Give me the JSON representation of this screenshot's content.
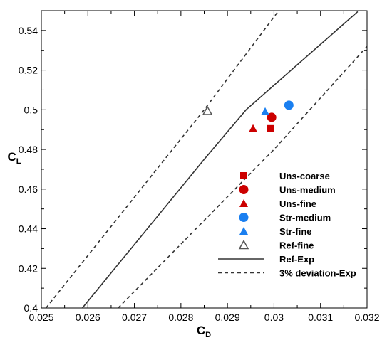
{
  "chart_data": {
    "type": "scatter",
    "xlabel": {
      "main": "C",
      "sub": "D"
    },
    "ylabel": {
      "main": "C",
      "sub": "L"
    },
    "xlim": [
      0.025,
      0.032
    ],
    "ylim": [
      0.4,
      0.55
    ],
    "xticks": [
      0.025,
      0.026,
      0.027,
      0.028,
      0.029,
      0.03,
      0.031,
      0.032
    ],
    "xtick_labels": [
      "0.025",
      "0.026",
      "0.027",
      "0.028",
      "0.029",
      "0.03",
      "0.031",
      "0.032"
    ],
    "yticks": [
      0.4,
      0.42,
      0.44,
      0.46,
      0.48,
      0.5,
      0.52,
      0.54
    ],
    "ytick_labels": [
      "0.4",
      "0.42",
      "0.44",
      "0.46",
      "0.48",
      "0.5",
      "0.52",
      "0.54"
    ],
    "legend_position": "lower-right",
    "points": [
      {
        "name": "Uns-coarse",
        "x": 0.02993,
        "y": 0.4905,
        "marker": "square",
        "color": "#cc0000"
      },
      {
        "name": "Uns-medium",
        "x": 0.02995,
        "y": 0.4962,
        "marker": "circle",
        "color": "#cc0000"
      },
      {
        "name": "Uns-fine",
        "x": 0.02955,
        "y": 0.4905,
        "marker": "triangle",
        "color": "#cc0000"
      },
      {
        "name": "Str-medium",
        "x": 0.03032,
        "y": 0.5023,
        "marker": "circle",
        "color": "#1a7ff0"
      },
      {
        "name": "Str-fine",
        "x": 0.02981,
        "y": 0.4991,
        "marker": "triangle",
        "color": "#1a7ff0"
      },
      {
        "name": "Ref-fine",
        "x": 0.02857,
        "y": 0.4994,
        "marker": "triangle-open",
        "color": "#555555"
      }
    ],
    "lines": [
      {
        "name": "Ref-Exp",
        "style": "solid",
        "color": "#333333",
        "x": [
          0.02588,
          0.0285,
          0.0294,
          0.0318
        ],
        "y": [
          0.4,
          0.475,
          0.5,
          0.5495
        ]
      },
      {
        "name": "3% deviation-Exp",
        "style": "dashed",
        "color": "#333333",
        "x": [
          0.0251,
          0.0285,
          0.0301
        ],
        "y": [
          0.4,
          0.5,
          0.55
        ]
      },
      {
        "name": "3% deviation-Exp",
        "style": "dashed",
        "color": "#333333",
        "x": [
          0.02665,
          0.03,
          0.032
        ],
        "y": [
          0.4,
          0.48,
          0.532
        ]
      }
    ],
    "legend": [
      {
        "label": "Uns-coarse",
        "marker": "square",
        "color": "#cc0000"
      },
      {
        "label": "Uns-medium",
        "marker": "circle",
        "color": "#cc0000"
      },
      {
        "label": "Uns-fine",
        "marker": "triangle",
        "color": "#cc0000"
      },
      {
        "label": "Str-medium",
        "marker": "circle",
        "color": "#1a7ff0"
      },
      {
        "label": "Str-fine",
        "marker": "triangle",
        "color": "#1a7ff0"
      },
      {
        "label": "Ref-fine",
        "marker": "triangle-open",
        "color": "#555555"
      },
      {
        "label": "Ref-Exp",
        "marker": "line-solid",
        "color": "#333333"
      },
      {
        "label": "3% deviation-Exp",
        "marker": "line-dashed",
        "color": "#333333"
      }
    ]
  }
}
